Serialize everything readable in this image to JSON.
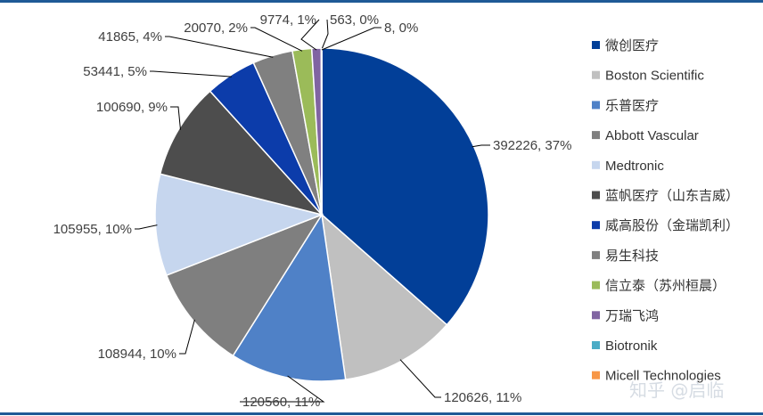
{
  "watermark": "知乎 @启临",
  "chart_data": {
    "type": "pie",
    "title": "",
    "slices": [
      {
        "name": "微创医疗",
        "value": 392226,
        "label": "392226, 37%",
        "color": "#023f98"
      },
      {
        "name": "Boston Scientific",
        "value": 120626,
        "label": "120626, 11%",
        "color": "#c0c0c0"
      },
      {
        "name": "乐普医疗",
        "value": 120560,
        "label": "120560, 11%",
        "color": "#4f81c7"
      },
      {
        "name": "Abbott Vascular",
        "value": 108944,
        "label": "108944, 10%",
        "color": "#7f7f7f"
      },
      {
        "name": "Medtronic",
        "value": 105955,
        "label": "105955, 10%",
        "color": "#c6d6ee"
      },
      {
        "name": "蓝帆医疗（山东吉威）",
        "value": 100690,
        "label": "100690, 9%",
        "color": "#4d4d4d"
      },
      {
        "name": "威高股份（金瑞凯利）",
        "value": 53441,
        "label": "53441, 5%",
        "color": "#0c3caa"
      },
      {
        "name": "易生科技",
        "value": 41865,
        "label": "41865, 4%",
        "color": "#808080"
      },
      {
        "name": "信立泰（苏州桓晨）",
        "value": 20070,
        "label": "20070, 2%",
        "color": "#9bbb59"
      },
      {
        "name": "万瑞飞鸿",
        "value": 9774,
        "label": "9774, 1%",
        "color": "#8064a2"
      },
      {
        "name": "Biotronik",
        "value": 563,
        "label": "563, 0%",
        "color": "#4bacc6"
      },
      {
        "name": "Micell Technologies",
        "value": 8,
        "label": "8, 0%",
        "color": "#f79646"
      }
    ],
    "legend_position": "right"
  }
}
